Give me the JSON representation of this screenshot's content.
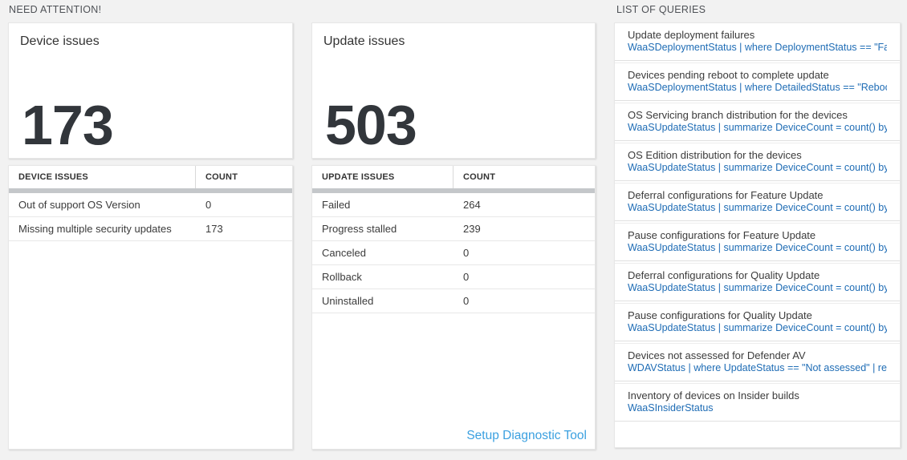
{
  "sections": {
    "need_attention": "NEED ATTENTION!",
    "list_of_queries": "LIST OF QUERIES"
  },
  "device_card": {
    "title": "Device issues",
    "count": "173"
  },
  "device_table": {
    "headers": [
      "DEVICE ISSUES",
      "COUNT"
    ],
    "rows": [
      [
        "Out of support OS Version",
        "0"
      ],
      [
        "Missing multiple security updates",
        "173"
      ]
    ]
  },
  "update_card": {
    "title": "Update issues",
    "count": "503"
  },
  "update_table": {
    "headers": [
      "UPDATE ISSUES",
      "COUNT"
    ],
    "rows": [
      [
        "Failed",
        "264"
      ],
      [
        "Progress stalled",
        "239"
      ],
      [
        "Canceled",
        "0"
      ],
      [
        "Rollback",
        "0"
      ],
      [
        "Uninstalled",
        "0"
      ]
    ],
    "footer_link": "Setup Diagnostic Tool"
  },
  "queries": [
    {
      "name": "Update deployment failures",
      "query": "WaaSDeploymentStatus | where DeploymentStatus == \"Failed\" |..."
    },
    {
      "name": "Devices pending reboot to complete update",
      "query": "WaaSDeploymentStatus | where DetailedStatus == \"Reboot pend..."
    },
    {
      "name": "OS Servicing branch distribution for the devices",
      "query": "WaaSUpdateStatus | summarize DeviceCount = count() by OSSer..."
    },
    {
      "name": "OS Edition distribution for the devices",
      "query": "WaaSUpdateStatus | summarize DeviceCount = count() by OSEdit..."
    },
    {
      "name": "Deferral configurations for Feature Update",
      "query": "WaaSUpdateStatus | summarize DeviceCount = count() by Featur..."
    },
    {
      "name": "Pause configurations for Feature Update",
      "query": "WaaSUpdateStatus | summarize DeviceCount = count() by Featur..."
    },
    {
      "name": "Deferral configurations for Quality Update",
      "query": "WaaSUpdateStatus | summarize DeviceCount = count() by Qualit..."
    },
    {
      "name": "Pause configurations for Quality Update",
      "query": "WaaSUpdateStatus | summarize DeviceCount = count() by Qualit..."
    },
    {
      "name": "Devices not assessed for Defender AV",
      "query": "WDAVStatus | where UpdateStatus == \"Not assessed\" | render ta..."
    },
    {
      "name": "Inventory of devices on Insider builds",
      "query": "WaaSInsiderStatus"
    }
  ],
  "colors": {
    "query_link_blue": "#1e6cb5",
    "diagnostic_link_blue": "#3ba0e0",
    "scrollbar_gray": "#c4c7ca",
    "page_background": "#f2f2f2"
  }
}
